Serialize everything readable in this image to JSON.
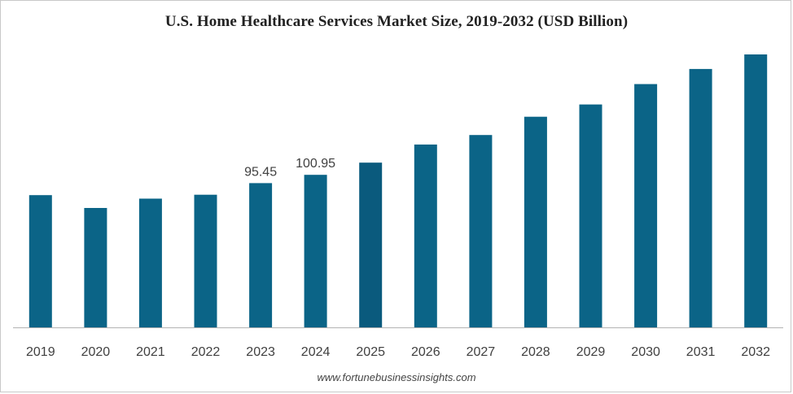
{
  "chart_data": {
    "type": "bar",
    "title": "U.S. Home Healthcare Services Market Size, 2019-2032 (USD Billion)",
    "categories": [
      "2019",
      "2020",
      "2021",
      "2022",
      "2023",
      "2024",
      "2025",
      "2026",
      "2027",
      "2028",
      "2029",
      "2030",
      "2031",
      "2032"
    ],
    "values": [
      87.5,
      79.0,
      85.2,
      87.8,
      95.45,
      100.95,
      109.0,
      121.0,
      127.3,
      139.4,
      147.5,
      161.0,
      171.0,
      180.6
    ],
    "data_labels": [
      {
        "category": "2023",
        "text": "95.45"
      },
      {
        "category": "2024",
        "text": "100.95"
      }
    ],
    "ylim": [
      0,
      180.6
    ],
    "xlabel": "",
    "ylabel": "",
    "grid": false,
    "legend": "none",
    "colors": {
      "bar": "#0b6487",
      "bar_highlight": "#0a5a7d",
      "axis": "#b3b3b3"
    }
  },
  "source": "www.fortunebusinessinsights.com"
}
